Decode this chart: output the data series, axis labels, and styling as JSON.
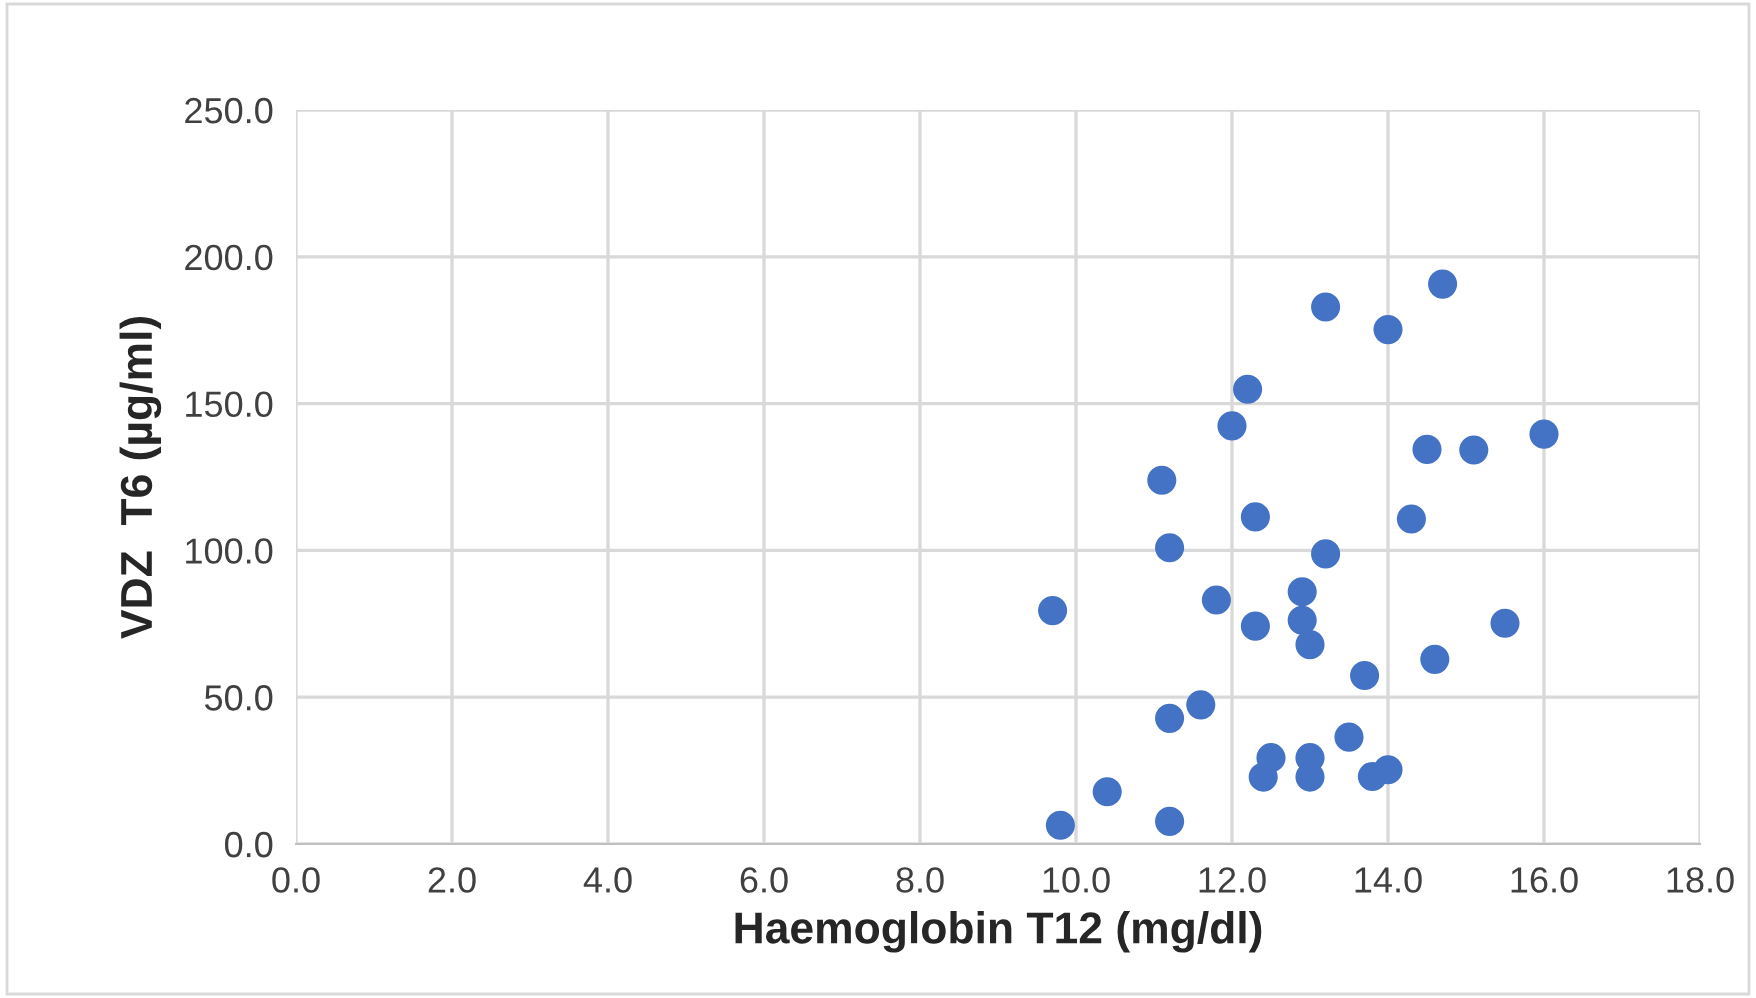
{
  "chart_data": {
    "type": "scatter",
    "xlabel": "Haemoglobin T12 (mg/dl)",
    "ylabel": "VDZ  T6 (µg/ml)",
    "x": [
      13.2,
      14.0,
      14.7,
      12.2,
      12.0,
      14.5,
      15.1,
      16.0,
      11.1,
      12.3,
      14.3,
      11.2,
      13.2,
      9.7,
      11.8,
      12.9,
      12.3,
      12.9,
      13.0,
      13.7,
      14.6,
      15.5,
      11.2,
      11.6,
      13.5,
      12.5,
      12.4,
      13.0,
      13.0,
      13.8,
      14.0,
      10.4,
      9.8,
      11.2
    ],
    "series": [
      {
        "color": "#4472c4",
        "values": [
          182.9,
          175.2,
          190.7,
          154.9,
          142.4,
          134.4,
          134.2,
          139.6,
          123.9,
          111.4,
          110.7,
          100.9,
          98.8,
          79.5,
          83.1,
          85.9,
          74.2,
          76.2,
          67.9,
          57.4,
          62.9,
          75.2,
          42.8,
          47.4,
          36.4,
          29.4,
          22.8,
          29.4,
          22.8,
          23.0,
          25.3,
          17.8,
          6.4,
          7.7
        ]
      }
    ],
    "xlim": [
      0,
      18
    ],
    "ylim": [
      0,
      250
    ],
    "xticks": [
      {
        "value": 0,
        "label": "0.0"
      },
      {
        "value": 2,
        "label": "2.0"
      },
      {
        "value": 4,
        "label": "4.0"
      },
      {
        "value": 6,
        "label": "6.0"
      },
      {
        "value": 8,
        "label": "8.0"
      },
      {
        "value": 10,
        "label": "10.0"
      },
      {
        "value": 12,
        "label": "12.0"
      },
      {
        "value": 14,
        "label": "14.0"
      },
      {
        "value": 16,
        "label": "16.0"
      },
      {
        "value": 18,
        "label": "18.0"
      }
    ],
    "yticks": [
      {
        "value": 0,
        "label": "0.0"
      },
      {
        "value": 50,
        "label": "50.0"
      },
      {
        "value": 100,
        "label": "100.0"
      },
      {
        "value": 150,
        "label": "150.0"
      },
      {
        "value": 200,
        "label": "200.0"
      },
      {
        "value": 250,
        "label": "250.0"
      }
    ],
    "grid": true,
    "marker": "circle",
    "legend": false
  }
}
